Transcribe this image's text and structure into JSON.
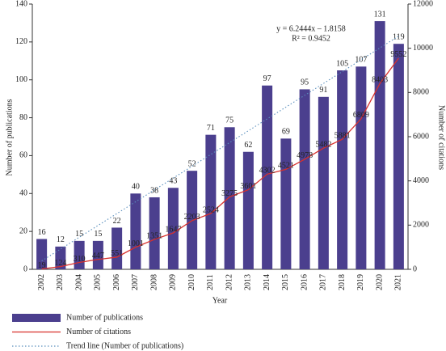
{
  "chart_data": {
    "type": "bar",
    "x_label": "Year",
    "y_label": "Number of publications",
    "y2_label": "Number of citations",
    "annotations": [
      "y = 6.2444x – 1.8158",
      "R² = 0.9452"
    ],
    "categories": [
      "2002",
      "2003",
      "2004",
      "2005",
      "2006",
      "2007",
      "2008",
      "2009",
      "2010",
      "2011",
      "2012",
      "2013",
      "2014",
      "2015",
      "2016",
      "2017",
      "2018",
      "2019",
      "2020",
      "2021"
    ],
    "series": [
      {
        "name": "Number of publications",
        "type": "bar",
        "color": "#4b3f8e",
        "values": [
          16,
          12,
          15,
          15,
          22,
          40,
          38,
          43,
          52,
          71,
          75,
          62,
          97,
          69,
          95,
          91,
          105,
          107,
          131,
          119
        ]
      },
      {
        "name": "Number of citations",
        "type": "line",
        "axis": "y2",
        "color": "#d8302c",
        "values": [
          19,
          124,
          310,
          447,
          551,
          1001,
          1351,
          1647,
          2203,
          2524,
          3275,
          3601,
          4302,
          4521,
          4978,
          5482,
          5881,
          6809,
          8403,
          9552
        ]
      },
      {
        "name": "Trend line (Number of publications)",
        "type": "trend",
        "color": "#5a8fbd",
        "values": [
          4.43,
          10.67,
          16.92,
          23.16,
          29.41,
          35.65,
          41.9,
          48.14,
          54.38,
          60.63,
          66.87,
          73.12,
          79.36,
          85.61,
          91.85,
          98.09,
          104.34,
          110.58,
          116.83,
          123.07
        ]
      }
    ],
    "ylim": [
      0,
      140
    ],
    "yticks": [
      0,
      20,
      40,
      60,
      80,
      100,
      120,
      140
    ],
    "y2lim": [
      0,
      12000
    ],
    "y2ticks": [
      0,
      2000,
      4000,
      6000,
      8000,
      10000,
      12000
    ]
  }
}
